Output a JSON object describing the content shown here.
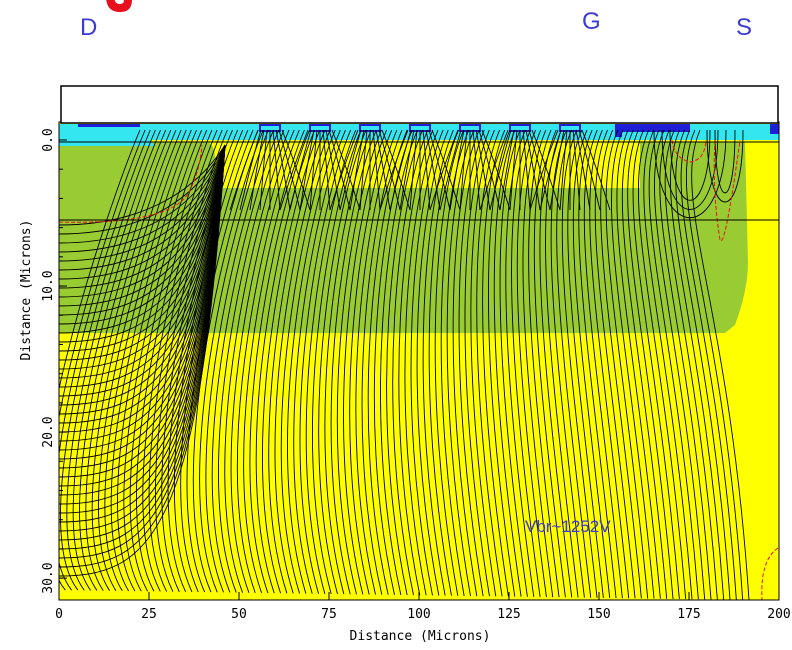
{
  "terminals": {
    "drain": "D",
    "gate": "G",
    "source": "S"
  },
  "annotation": "Vbr~1252V",
  "plot": {
    "xlabel": "Distance (Microns)",
    "ylabel": "Distance (Microns)",
    "x_ticks": [
      "0",
      "25",
      "50",
      "75",
      "100",
      "125",
      "150",
      "175",
      "200"
    ],
    "y_ticks": [
      "0.0",
      "10.0",
      "20.0",
      "30.0"
    ],
    "x_range": [
      0,
      200
    ],
    "y_range": [
      0,
      31.5
    ]
  },
  "colors": {
    "yellow": "#ffff00",
    "green": "#99cc33",
    "cyan": "#33e6f0",
    "blue": "#1f1fd6",
    "label_blue": "#3b3bd6",
    "red": "#e8101c",
    "contour": "#000000"
  }
}
